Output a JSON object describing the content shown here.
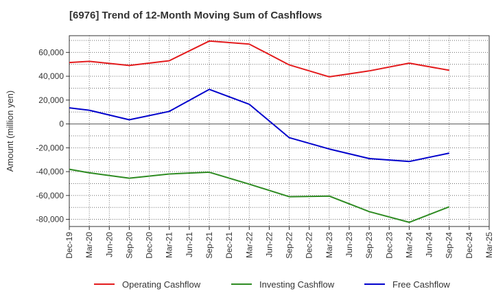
{
  "chart_data": {
    "type": "line",
    "title": "[6976]  Trend of 12-Month Moving Sum of Cashflows",
    "ylabel": "Amount (million yen)",
    "xlabel": "",
    "categories": [
      "Dec-19",
      "Mar-20",
      "Jun-20",
      "Sep-20",
      "Dec-20",
      "Mar-21",
      "Jun-21",
      "Sep-21",
      "Dec-21",
      "Mar-22",
      "Jun-22",
      "Sep-22",
      "Dec-22",
      "Mar-23",
      "Jun-23",
      "Sep-23",
      "Dec-23",
      "Mar-24",
      "Jun-24",
      "Sep-24",
      "Dec-24",
      "Mar-25"
    ],
    "yticks": [
      -80000,
      -60000,
      -40000,
      -20000,
      0,
      20000,
      40000,
      60000
    ],
    "ytick_labels": [
      "-80,000",
      "-60,000",
      "-40,000",
      "-20,000",
      "0",
      "20,000",
      "40,000",
      "60,000"
    ],
    "ylim": [
      -86000,
      74000
    ],
    "grid": true,
    "legend_position": "bottom",
    "series": [
      {
        "name": "Operating Cashflow",
        "color": "#e31a1c",
        "values": [
          51500,
          52500,
          null,
          49000,
          null,
          53000,
          null,
          69500,
          null,
          67000,
          null,
          49500,
          null,
          39500,
          null,
          44500,
          null,
          51000,
          null,
          45000,
          null,
          null
        ]
      },
      {
        "name": "Investing Cashflow",
        "color": "#2e8b22",
        "values": [
          -38000,
          -41000,
          null,
          -45500,
          null,
          -42000,
          null,
          -40500,
          null,
          -50500,
          null,
          -61000,
          null,
          -60500,
          null,
          -73500,
          null,
          -82500,
          null,
          -69500,
          null,
          null
        ]
      },
      {
        "name": "Free Cashflow",
        "color": "#0000cc",
        "values": [
          13500,
          11500,
          null,
          3500,
          null,
          10500,
          null,
          29000,
          null,
          16500,
          null,
          -11500,
          null,
          -21000,
          null,
          -29000,
          null,
          -31500,
          null,
          -24500,
          null,
          null
        ]
      }
    ]
  }
}
